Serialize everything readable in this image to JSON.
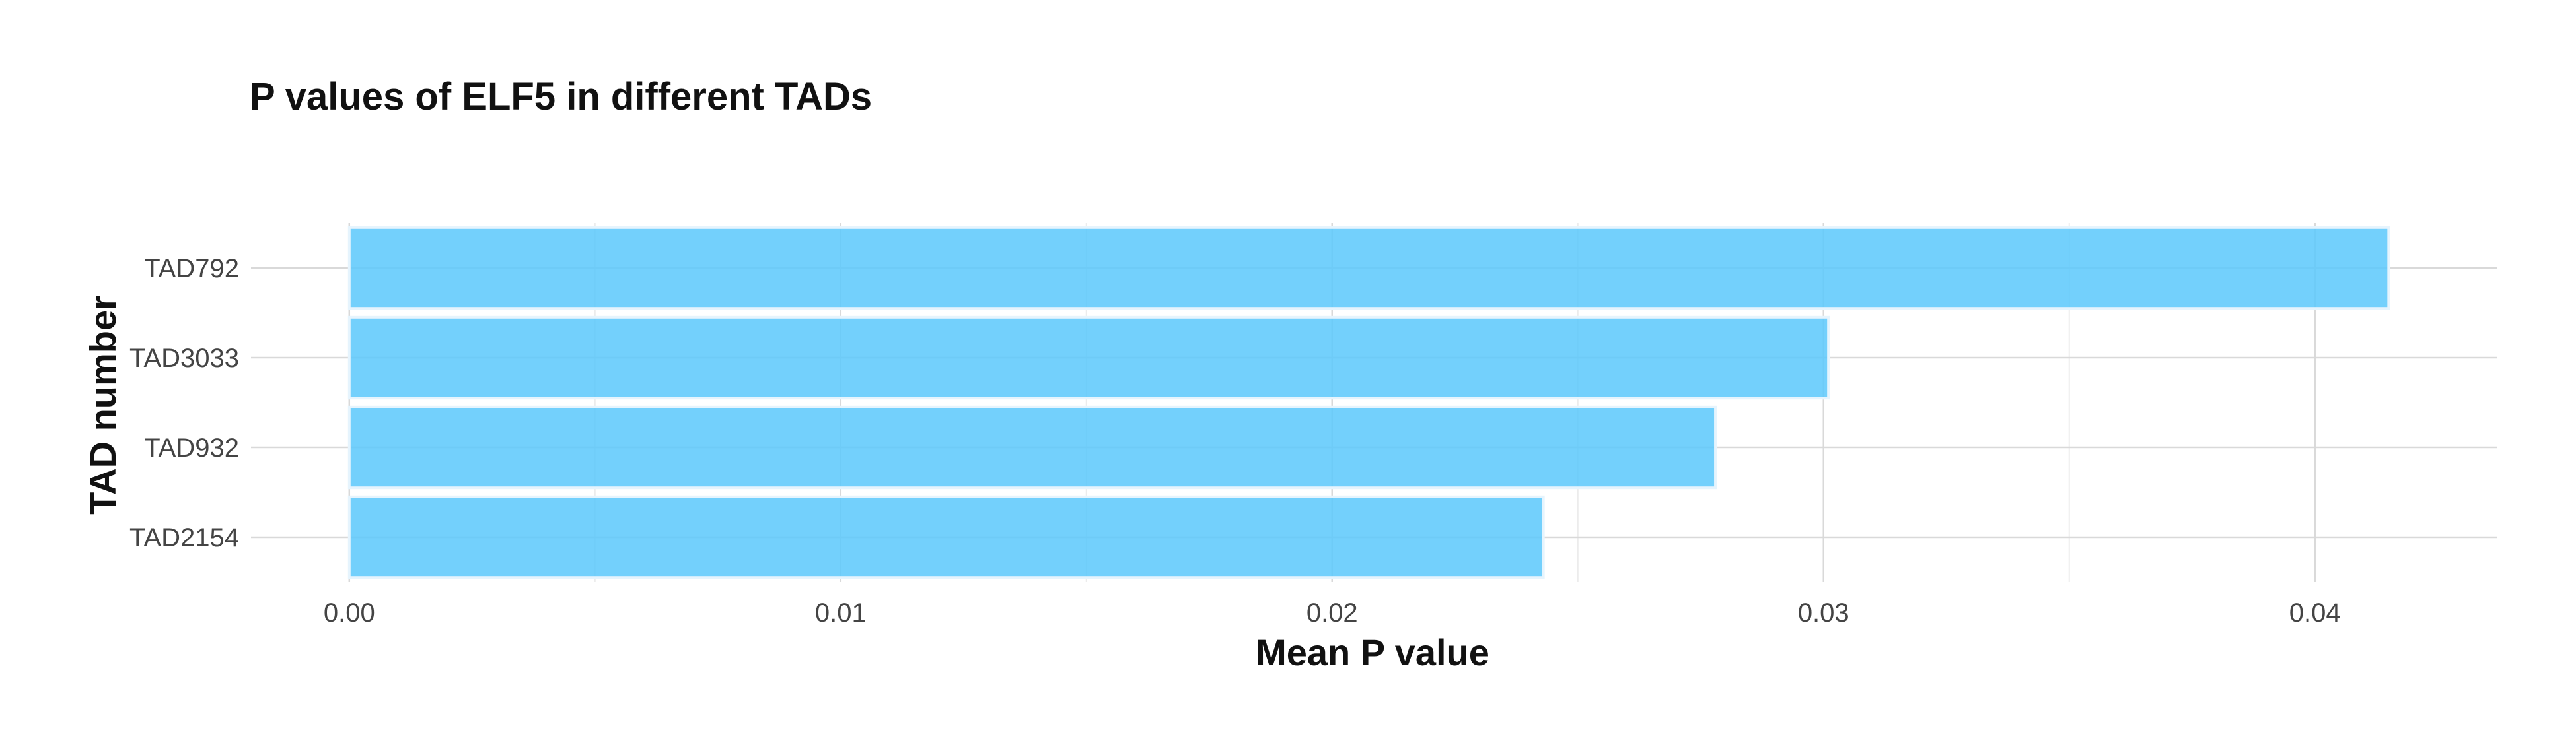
{
  "chart_data": {
    "type": "bar",
    "orientation": "horizontal",
    "title": "P values of ELF5 in different TADs",
    "xlabel": "Mean P value",
    "ylabel": "TAD number",
    "categories": [
      "TAD792",
      "TAD3033",
      "TAD932",
      "TAD2154"
    ],
    "values": [
      0.0415,
      0.0301,
      0.0278,
      0.0243
    ],
    "xlim": [
      -0.002,
      0.0437
    ],
    "xticks": [
      0.0,
      0.01,
      0.02,
      0.03,
      0.04
    ],
    "xtick_labels": [
      "0.00",
      "0.01",
      "0.02",
      "0.03",
      "0.04"
    ],
    "grid": true,
    "bar_color": "#5bc8fb",
    "bar_edge_color": "#e6f4fd",
    "grid_major_color": "#d9d9d9",
    "grid_minor_color": "#ececec"
  }
}
